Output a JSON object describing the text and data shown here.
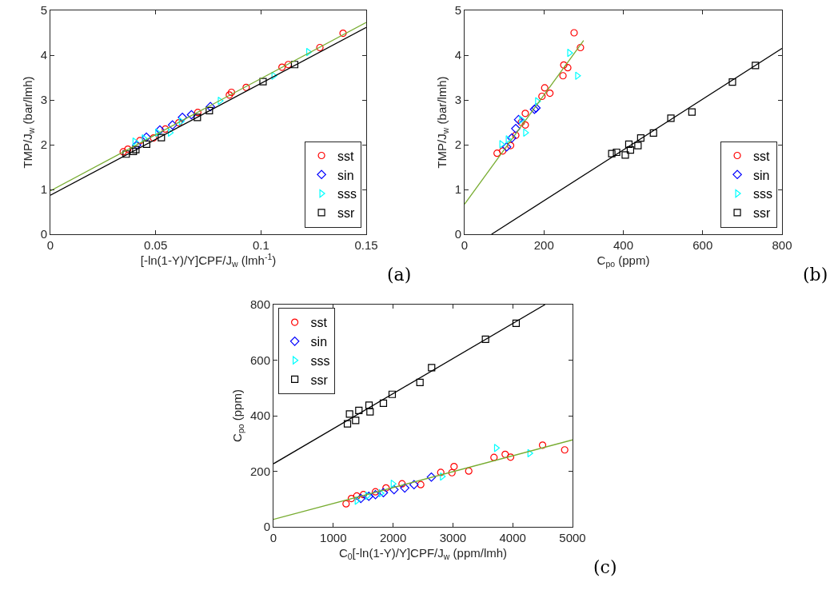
{
  "chart_data": [
    {
      "type": "scatter",
      "xlabel": "[-ln(1-Y)/Y]CPF/J$_{w}$ (lmh$^{-1}$)",
      "ylabel": "TMP/J$_{w}$ (bar/lmh)",
      "annotations": [
        "(a)"
      ],
      "xlim": [
        0,
        0.15
      ],
      "xticks": [
        0,
        0.05,
        0.1,
        0.15
      ],
      "ylim": [
        0,
        5
      ],
      "yticks": [
        0,
        1,
        2,
        3,
        4,
        5
      ],
      "grid": false,
      "legend": "bottom right",
      "series": [
        {
          "name": "sst",
          "color": "#ff0000",
          "marker": "circle",
          "x": [
            0.139,
            0.128,
            0.113,
            0.11,
            0.093,
            0.086,
            0.085,
            0.07,
            0.0346,
            0.0368,
            0.0425,
            0.049,
            0.0546,
            0.061
          ],
          "values": [
            4.49,
            4.17,
            3.79,
            3.73,
            3.28,
            3.17,
            3.11,
            2.72,
            1.84,
            1.9,
            2.09,
            2.15,
            2.35,
            2.49
          ]
        },
        {
          "name": "sin",
          "color": "#0000ff",
          "marker": "diamond",
          "x": [
            0.041,
            0.0456,
            0.052,
            0.058,
            0.0627,
            0.067,
            0.076
          ],
          "values": [
            1.99,
            2.17,
            2.33,
            2.44,
            2.61,
            2.67,
            2.85
          ]
        },
        {
          "name": "sss",
          "color": "#00ffff",
          "marker": "triangle",
          "x": [
            0.04,
            0.0444,
            0.0508,
            0.0568,
            0.062,
            0.0805,
            0.106,
            0.1225
          ],
          "values": [
            2.07,
            2.14,
            2.27,
            2.27,
            2.52,
            2.98,
            3.54,
            4.07
          ]
        },
        {
          "name": "ssr",
          "color": "#000000",
          "marker": "square",
          "x": [
            0.036,
            0.0394,
            0.0406,
            0.0457,
            0.0527,
            0.0698,
            0.0755,
            0.101,
            0.116
          ],
          "values": [
            1.79,
            1.85,
            1.89,
            2.01,
            2.16,
            2.61,
            2.76,
            3.41,
            3.79
          ]
        },
        {
          "type": "line",
          "color": "#77ac30",
          "marker": "none",
          "x": [
            0,
            0.15
          ],
          "values": [
            0.97,
            4.73
          ]
        },
        {
          "type": "line",
          "color": "#000000",
          "marker": "none",
          "x": [
            0,
            0.15
          ],
          "values": [
            0.87,
            4.62
          ]
        }
      ]
    },
    {
      "type": "scatter",
      "xlabel": "C$_{po}$ (ppm)",
      "ylabel": "TMP/J$_{w}$ (bar/lmh)",
      "annotations": [
        "(b)"
      ],
      "xlim": [
        0,
        800
      ],
      "xticks": [
        0,
        200,
        400,
        600,
        800
      ],
      "ylim": [
        0,
        5
      ],
      "yticks": [
        0,
        1,
        2,
        3,
        4,
        5
      ],
      "grid": false,
      "legend": "bottom right",
      "series": [
        {
          "name": "sst",
          "color": "#ff0000",
          "marker": "circle",
          "x": [
            276,
            292,
            250,
            260,
            248,
            202,
            215,
            195,
            153,
            153,
            82,
            96,
            116,
            129,
            143
          ],
          "values": [
            4.5,
            4.17,
            3.78,
            3.72,
            3.54,
            3.27,
            3.15,
            3.08,
            2.7,
            2.44,
            1.81,
            1.86,
            1.98,
            2.21,
            2.5
          ]
        },
        {
          "name": "sin",
          "color": "#0000ff",
          "marker": "diamond",
          "x": [
            106,
            119,
            129,
            136,
            176,
            180
          ],
          "values": [
            1.95,
            2.15,
            2.36,
            2.56,
            2.79,
            2.82
          ]
        },
        {
          "name": "sss",
          "color": "#00ffff",
          "marker": "triangle",
          "x": [
            264,
            284,
            183,
            153,
            93,
            109,
            143
          ],
          "values": [
            4.05,
            3.54,
            2.97,
            2.27,
            2.01,
            2.12,
            2.56
          ]
        },
        {
          "name": "ssr",
          "color": "#000000",
          "marker": "square",
          "x": [
            371,
            383,
            405,
            414,
            418,
            437,
            444,
            476,
            520,
            573,
            675,
            733
          ],
          "values": [
            1.8,
            1.83,
            1.77,
            2.01,
            1.88,
            1.98,
            2.15,
            2.26,
            2.59,
            2.73,
            3.4,
            3.77
          ]
        },
        {
          "type": "line",
          "color": "#77ac30",
          "marker": "none",
          "x": [
            0,
            300
          ],
          "values": [
            0.67,
            4.33
          ]
        },
        {
          "type": "line",
          "color": "#000000",
          "marker": "none",
          "x": [
            68,
            800
          ],
          "values": [
            0,
            4.15
          ]
        }
      ]
    },
    {
      "type": "scatter",
      "xlabel": "C$_{0}$[-ln(1-Y)/Y]CPF/J$_{w}$ (ppm/lmh)",
      "ylabel": "C$_{po}$ (ppm)",
      "annotations": [
        "(c)"
      ],
      "xlim": [
        0,
        5000
      ],
      "xticks": [
        0,
        1000,
        2000,
        3000,
        4000,
        5000
      ],
      "ylim": [
        0,
        800
      ],
      "yticks": [
        0,
        200,
        400,
        600,
        800
      ],
      "grid": false,
      "legend": "top left",
      "series": [
        {
          "name": "sst",
          "color": "#ff0000",
          "marker": "circle",
          "x": [
            4499,
            4869,
            3874,
            3964,
            3687,
            3265,
            3019,
            2984,
            2797,
            2462,
            2150,
            1882,
            1504,
            1303,
            1214,
            1393,
            1705
          ],
          "values": [
            294,
            277,
            261,
            251,
            250,
            201,
            217,
            195,
            196,
            152,
            155,
            140,
            116,
            102,
            83,
            111,
            126
          ]
        },
        {
          "name": "sin",
          "color": "#0000ff",
          "marker": "diamond",
          "x": [
            2640,
            2350,
            2195,
            2016,
            1838,
            1705,
            1594,
            1460
          ],
          "values": [
            179,
            152,
            140,
            134,
            123,
            116,
            110,
            102
          ]
        },
        {
          "name": "sss",
          "color": "#00ffff",
          "marker": "triangle",
          "x": [
            3723,
            4281,
            2818,
            1995,
            1794,
            1571,
            1393
          ],
          "values": [
            284,
            265,
            181,
            155,
            121,
            112,
            94
          ]
        },
        {
          "name": "ssr",
          "color": "#000000",
          "marker": "square",
          "x": [
            4057,
            3545,
            2644,
            2449,
            1985,
            1838,
            1598,
            1615,
            1428,
            1272,
            1374,
            1237
          ],
          "values": [
            733,
            675,
            573,
            520,
            477,
            445,
            438,
            414,
            419,
            406,
            383,
            371
          ]
        },
        {
          "type": "line",
          "color": "#77ac30",
          "marker": "none",
          "x": [
            0,
            5000
          ],
          "values": [
            27,
            313
          ]
        },
        {
          "type": "line",
          "color": "#000000",
          "marker": "none",
          "x": [
            0,
            4540
          ],
          "values": [
            227,
            800
          ]
        }
      ]
    }
  ]
}
